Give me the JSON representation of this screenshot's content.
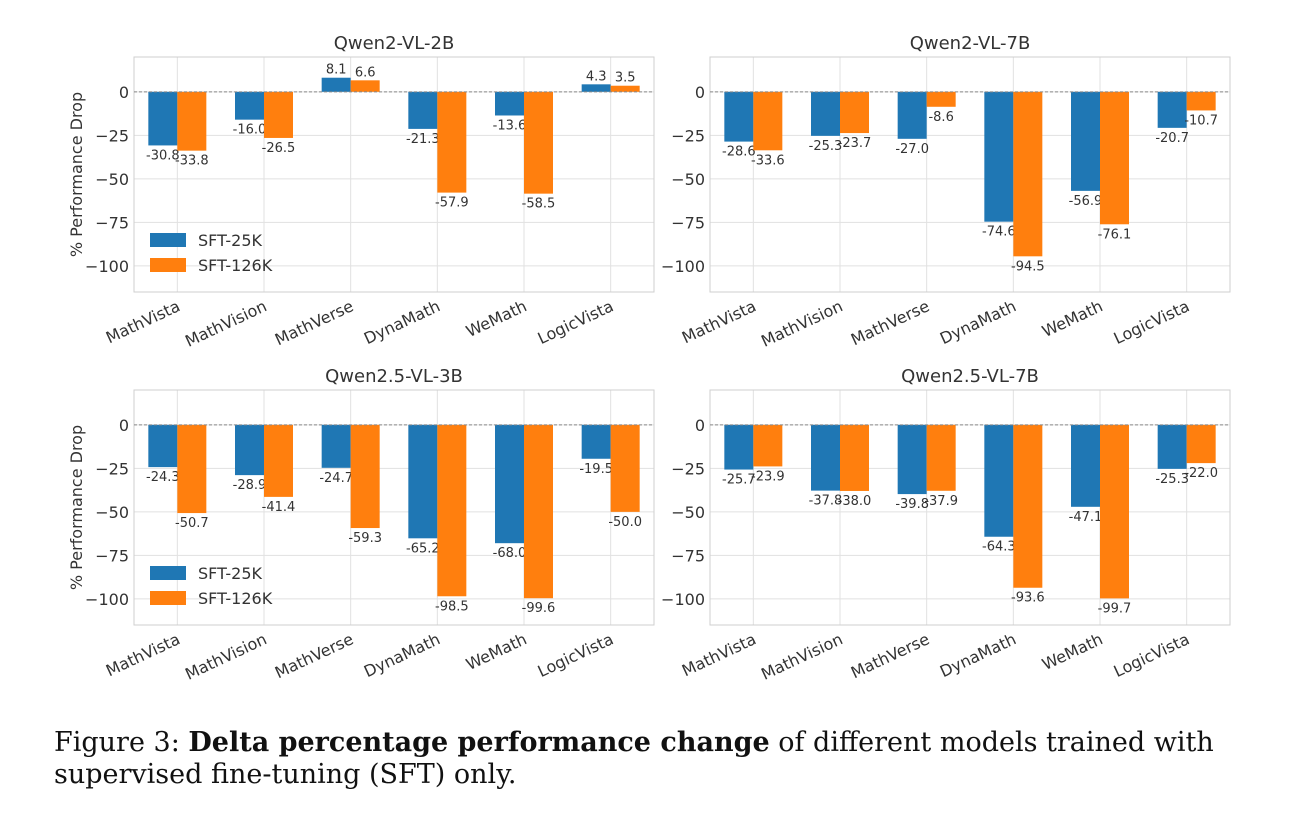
{
  "colors": {
    "sft_25k": "#1f77b4",
    "sft_126k": "#ff7f0e"
  },
  "chart_data": [
    {
      "type": "bar",
      "title": "Qwen2-VL-2B",
      "ylabel": "% Performance Drop",
      "ylim": [
        -115,
        20
      ],
      "yticks": [
        0,
        -25,
        -50,
        -75,
        -100
      ],
      "categories": [
        "MathVista",
        "MathVision",
        "MathVerse",
        "DynaMath",
        "WeMath",
        "LogicVista"
      ],
      "series": [
        {
          "name": "SFT-25K",
          "values": [
            -30.8,
            -16.0,
            8.1,
            -21.3,
            -13.6,
            4.3
          ]
        },
        {
          "name": "SFT-126K",
          "values": [
            -33.8,
            -26.5,
            6.6,
            -57.9,
            -58.5,
            3.5
          ]
        }
      ],
      "legend": "lower-left",
      "grid": true
    },
    {
      "type": "bar",
      "title": "Qwen2-VL-7B",
      "ylabel": "",
      "ylim": [
        -115,
        20
      ],
      "yticks": [
        0,
        -25,
        -50,
        -75,
        -100
      ],
      "categories": [
        "MathVista",
        "MathVision",
        "MathVerse",
        "DynaMath",
        "WeMath",
        "LogicVista"
      ],
      "series": [
        {
          "name": "SFT-25K",
          "values": [
            -28.6,
            -25.3,
            -27.0,
            -74.6,
            -56.9,
            -20.7
          ]
        },
        {
          "name": "SFT-126K",
          "values": [
            -33.6,
            -23.7,
            -8.6,
            -94.5,
            -76.1,
            -10.7
          ]
        }
      ],
      "legend": "none",
      "grid": true
    },
    {
      "type": "bar",
      "title": "Qwen2.5-VL-3B",
      "ylabel": "% Performance Drop",
      "ylim": [
        -115,
        20
      ],
      "yticks": [
        0,
        -25,
        -50,
        -75,
        -100
      ],
      "categories": [
        "MathVista",
        "MathVision",
        "MathVerse",
        "DynaMath",
        "WeMath",
        "LogicVista"
      ],
      "series": [
        {
          "name": "SFT-25K",
          "values": [
            -24.3,
            -28.9,
            -24.7,
            -65.2,
            -68.0,
            -19.5
          ]
        },
        {
          "name": "SFT-126K",
          "values": [
            -50.7,
            -41.4,
            -59.3,
            -98.5,
            -99.6,
            -50.0
          ]
        }
      ],
      "legend": "lower-left",
      "grid": true
    },
    {
      "type": "bar",
      "title": "Qwen2.5-VL-7B",
      "ylabel": "",
      "ylim": [
        -115,
        20
      ],
      "yticks": [
        0,
        -25,
        -50,
        -75,
        -100
      ],
      "categories": [
        "MathVista",
        "MathVision",
        "MathVerse",
        "DynaMath",
        "WeMath",
        "LogicVista"
      ],
      "series": [
        {
          "name": "SFT-25K",
          "values": [
            -25.7,
            -37.8,
            -39.8,
            -64.3,
            -47.1,
            -25.3
          ]
        },
        {
          "name": "SFT-126K",
          "values": [
            -23.9,
            -38.0,
            -37.9,
            -93.6,
            -99.7,
            -22.0
          ]
        }
      ],
      "legend": "none",
      "grid": true
    }
  ],
  "caption": {
    "prefix": "Figure 3: ",
    "bold": "Delta percentage performance change",
    "rest": " of different models trained with supervised fine-tuning (SFT) only."
  }
}
